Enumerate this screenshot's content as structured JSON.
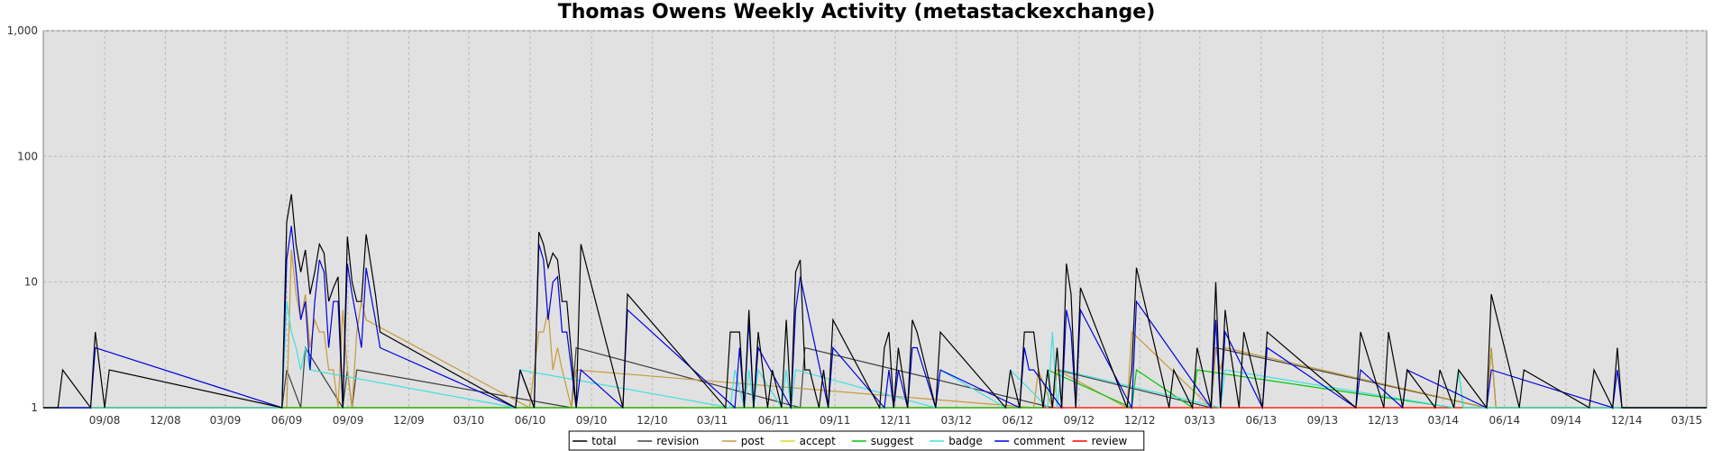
{
  "title": "Thomas Owens Weekly Activity (metastackexchange)",
  "chart_data": {
    "type": "line",
    "title": "Thomas Owens Weekly Activity (metastackexchange)",
    "xlabel": "",
    "ylabel": "",
    "y_scale": "log",
    "ylim": [
      1,
      1000
    ],
    "y_ticks": [
      1,
      10,
      100,
      1000
    ],
    "y_tick_labels": [
      "1",
      "10",
      "100",
      "1,000"
    ],
    "x_ticks": [
      "09/08",
      "12/08",
      "03/09",
      "06/09",
      "09/09",
      "12/09",
      "03/10",
      "06/10",
      "09/10",
      "12/10",
      "03/11",
      "06/11",
      "09/11",
      "12/11",
      "03/12",
      "06/12",
      "09/12",
      "12/12",
      "03/13",
      "06/13",
      "09/13",
      "12/13",
      "03/14",
      "06/14",
      "09/14",
      "12/14",
      "03/15"
    ],
    "grid": true,
    "legend_position": "bottom",
    "series": [
      {
        "name": "total",
        "color": "#000000",
        "points": [
          [
            "2008-06-30",
            2
          ],
          [
            "2008-08-18",
            4
          ],
          [
            "2008-09-08",
            2
          ],
          [
            "2009-06-01",
            30
          ],
          [
            "2009-06-08",
            50
          ],
          [
            "2009-06-15",
            20
          ],
          [
            "2009-06-22",
            12
          ],
          [
            "2009-06-29",
            18
          ],
          [
            "2009-07-06",
            8
          ],
          [
            "2009-07-13",
            12
          ],
          [
            "2009-07-20",
            20
          ],
          [
            "2009-07-27",
            17
          ],
          [
            "2009-08-03",
            7
          ],
          [
            "2009-08-10",
            9
          ],
          [
            "2009-08-17",
            11
          ],
          [
            "2009-08-31",
            23
          ],
          [
            "2009-09-07",
            10
          ],
          [
            "2009-09-14",
            7
          ],
          [
            "2009-09-21",
            7
          ],
          [
            "2009-09-28",
            24
          ],
          [
            "2009-10-05",
            14
          ],
          [
            "2009-10-12",
            8
          ],
          [
            "2009-10-19",
            4
          ],
          [
            "2010-05-17",
            2
          ],
          [
            "2010-06-14",
            25
          ],
          [
            "2010-06-21",
            20
          ],
          [
            "2010-06-28",
            13
          ],
          [
            "2010-07-05",
            17
          ],
          [
            "2010-07-12",
            15
          ],
          [
            "2010-07-19",
            7
          ],
          [
            "2010-07-26",
            7
          ],
          [
            "2010-08-16",
            20
          ],
          [
            "2010-10-25",
            8
          ],
          [
            "2011-03-28",
            4
          ],
          [
            "2011-04-04",
            4
          ],
          [
            "2011-04-11",
            4
          ],
          [
            "2011-04-25",
            6
          ],
          [
            "2011-05-09",
            4
          ],
          [
            "2011-05-30",
            2
          ],
          [
            "2011-06-20",
            5
          ],
          [
            "2011-07-04",
            12
          ],
          [
            "2011-07-11",
            15
          ],
          [
            "2011-07-18",
            2
          ],
          [
            "2011-07-25",
            2
          ],
          [
            "2011-08-15",
            2
          ],
          [
            "2011-08-29",
            5
          ],
          [
            "2011-11-14",
            3
          ],
          [
            "2011-11-21",
            4
          ],
          [
            "2011-12-05",
            3
          ],
          [
            "2011-12-26",
            5
          ],
          [
            "2012-01-02",
            4
          ],
          [
            "2012-02-06",
            4
          ],
          [
            "2012-05-21",
            2
          ],
          [
            "2012-06-11",
            4
          ],
          [
            "2012-06-18",
            4
          ],
          [
            "2012-06-25",
            4
          ],
          [
            "2012-07-16",
            2
          ],
          [
            "2012-07-30",
            3
          ],
          [
            "2012-08-13",
            14
          ],
          [
            "2012-08-20",
            8
          ],
          [
            "2012-09-03",
            9
          ],
          [
            "2012-11-19",
            2
          ],
          [
            "2012-11-26",
            13
          ],
          [
            "2013-01-21",
            2
          ],
          [
            "2013-02-25",
            3
          ],
          [
            "2013-03-25",
            10
          ],
          [
            "2013-04-08",
            6
          ],
          [
            "2013-04-15",
            3
          ],
          [
            "2013-05-06",
            4
          ],
          [
            "2013-06-10",
            4
          ],
          [
            "2013-10-28",
            4
          ],
          [
            "2013-12-09",
            4
          ],
          [
            "2014-01-06",
            2
          ],
          [
            "2014-02-24",
            2
          ],
          [
            "2014-03-24",
            2
          ],
          [
            "2014-05-12",
            8
          ],
          [
            "2014-06-30",
            2
          ],
          [
            "2014-10-13",
            2
          ],
          [
            "2014-11-17",
            3
          ]
        ]
      },
      {
        "name": "revision",
        "color": "#404040",
        "points": [
          [
            "2009-06-01",
            2
          ],
          [
            "2009-06-29",
            3
          ],
          [
            "2009-08-31",
            2
          ],
          [
            "2009-09-14",
            2
          ],
          [
            "2010-08-09",
            3
          ],
          [
            "2011-07-18",
            3
          ],
          [
            "2012-07-30",
            2
          ],
          [
            "2013-03-25",
            3
          ],
          [
            "2014-05-12",
            3
          ]
        ]
      },
      {
        "name": "post",
        "color": "#c79a3a",
        "points": [
          [
            "2009-06-08",
            18
          ],
          [
            "2009-06-15",
            8
          ],
          [
            "2009-06-22",
            5
          ],
          [
            "2009-06-29",
            8
          ],
          [
            "2009-07-06",
            3
          ],
          [
            "2009-07-13",
            5
          ],
          [
            "2009-07-20",
            4
          ],
          [
            "2009-07-27",
            4
          ],
          [
            "2009-08-03",
            2
          ],
          [
            "2009-08-10",
            2
          ],
          [
            "2009-08-24",
            6
          ],
          [
            "2009-08-31",
            2
          ],
          [
            "2009-09-14",
            4
          ],
          [
            "2009-09-21",
            7
          ],
          [
            "2009-09-28",
            5
          ],
          [
            "2010-06-07",
            2
          ],
          [
            "2010-06-14",
            4
          ],
          [
            "2010-06-21",
            4
          ],
          [
            "2010-06-28",
            6
          ],
          [
            "2010-07-05",
            2
          ],
          [
            "2010-07-12",
            3
          ],
          [
            "2010-07-19",
            2
          ],
          [
            "2010-08-09",
            2
          ],
          [
            "2012-07-02",
            2
          ],
          [
            "2012-07-30",
            2
          ],
          [
            "2012-11-19",
            4
          ],
          [
            "2013-03-25",
            3
          ],
          [
            "2013-04-01",
            2
          ],
          [
            "2013-04-08",
            3
          ],
          [
            "2014-05-12",
            3
          ]
        ]
      },
      {
        "name": "accept",
        "color": "#d8d820",
        "points": []
      },
      {
        "name": "suggest",
        "color": "#00c800",
        "points": [
          [
            "2012-07-16",
            2
          ],
          [
            "2012-11-26",
            2
          ],
          [
            "2013-02-25",
            2
          ],
          [
            "2014-03-24",
            2
          ]
        ]
      },
      {
        "name": "badge",
        "color": "#40e0e0",
        "points": [
          [
            "2009-06-01",
            7
          ],
          [
            "2009-06-08",
            4
          ],
          [
            "2009-06-15",
            3
          ],
          [
            "2009-06-22",
            2
          ],
          [
            "2009-06-29",
            3
          ],
          [
            "2009-07-06",
            2
          ],
          [
            "2010-05-17",
            2
          ],
          [
            "2011-04-04",
            2
          ],
          [
            "2011-04-25",
            2
          ],
          [
            "2011-05-09",
            2
          ],
          [
            "2011-06-20",
            2
          ],
          [
            "2011-07-04",
            2
          ],
          [
            "2012-02-06",
            2
          ],
          [
            "2012-05-21",
            2
          ],
          [
            "2012-07-23",
            4
          ],
          [
            "2012-08-06",
            2
          ],
          [
            "2013-04-08",
            2
          ],
          [
            "2014-03-24",
            2
          ]
        ]
      },
      {
        "name": "comment",
        "color": "#0000e0",
        "points": [
          [
            "2008-08-18",
            3
          ],
          [
            "2009-06-01",
            15
          ],
          [
            "2009-06-08",
            28
          ],
          [
            "2009-06-15",
            12
          ],
          [
            "2009-06-22",
            5
          ],
          [
            "2009-06-29",
            7
          ],
          [
            "2009-07-06",
            2
          ],
          [
            "2009-07-13",
            7
          ],
          [
            "2009-07-20",
            15
          ],
          [
            "2009-07-27",
            12
          ],
          [
            "2009-08-03",
            3
          ],
          [
            "2009-08-10",
            7
          ],
          [
            "2009-08-17",
            7
          ],
          [
            "2009-08-31",
            14
          ],
          [
            "2009-09-07",
            8
          ],
          [
            "2009-09-14",
            5
          ],
          [
            "2009-09-21",
            3
          ],
          [
            "2009-09-28",
            13
          ],
          [
            "2009-10-05",
            8
          ],
          [
            "2009-10-12",
            5
          ],
          [
            "2009-10-19",
            3
          ],
          [
            "2010-05-17",
            2
          ],
          [
            "2010-06-14",
            20
          ],
          [
            "2010-06-21",
            15
          ],
          [
            "2010-06-28",
            5
          ],
          [
            "2010-07-05",
            10
          ],
          [
            "2010-07-12",
            11
          ],
          [
            "2010-07-19",
            4
          ],
          [
            "2010-07-26",
            4
          ],
          [
            "2010-08-16",
            2
          ],
          [
            "2010-10-25",
            6
          ],
          [
            "2011-04-11",
            3
          ],
          [
            "2011-04-25",
            5
          ],
          [
            "2011-05-09",
            3
          ],
          [
            "2011-07-04",
            6
          ],
          [
            "2011-07-11",
            11
          ],
          [
            "2011-08-29",
            3
          ],
          [
            "2011-11-21",
            2
          ],
          [
            "2011-12-05",
            2
          ],
          [
            "2011-12-26",
            3
          ],
          [
            "2012-01-02",
            3
          ],
          [
            "2012-02-06",
            2
          ],
          [
            "2012-06-11",
            3
          ],
          [
            "2012-06-18",
            2
          ],
          [
            "2012-06-25",
            2
          ],
          [
            "2012-08-13",
            6
          ],
          [
            "2012-08-20",
            4
          ],
          [
            "2012-09-03",
            6
          ],
          [
            "2012-11-26",
            7
          ],
          [
            "2013-03-25",
            5
          ],
          [
            "2013-04-08",
            4
          ],
          [
            "2013-06-10",
            3
          ],
          [
            "2013-10-28",
            2
          ],
          [
            "2014-01-06",
            2
          ],
          [
            "2014-05-12",
            2
          ],
          [
            "2014-11-17",
            2
          ]
        ]
      },
      {
        "name": "review",
        "color": "#ff0000",
        "points": []
      }
    ]
  }
}
